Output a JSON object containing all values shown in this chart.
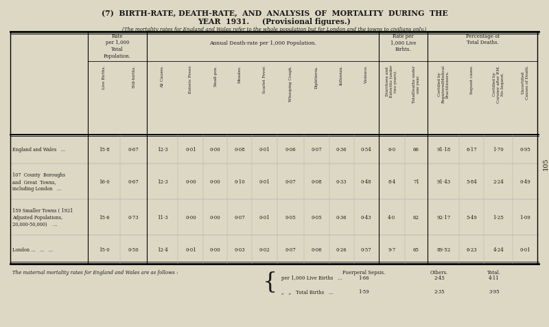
{
  "title_line1": "(7)  BIRTH-RATE, DEATH-RATE,  AND  ANALYSIS  OF  MORTALITY  DURING  THE",
  "title_line2": "YEAR  1931.     (Provisional figures.)",
  "subtitle": "(The mortality rates for England and Wales refer to the whole population but for London and the towns to civilians only.)",
  "col_headers": [
    "Live Births.",
    "Still-births.",
    "All Causes.",
    "Enteric Fever.",
    "Small-pox.",
    "Measles.",
    "Scarlet Fever.",
    "Whooping Cough.",
    "Diphtheria.",
    "Influenza.",
    "Violence.",
    "Diarrhoea and\nEnteritis (under\ntwo years).",
    "TotalDeaths under\none year.",
    "Certified by\nRegisteredMedical\nPractitioners.",
    "Inquest cases.",
    "Certified by\nCoroner after P.M.\nNo Inquest.",
    "Uncertified\nCauses of Death."
  ],
  "row_labels": [
    "England and Wales   ...",
    "107  County  Boroughs\nand  Great  Towns,\nincluding London   ...",
    "159 Smaller Towns ( 1921\nAdjusted Populations,\n20,000-50,000)    ...",
    "London ...   ...   ..."
  ],
  "data": [
    [
      "15·8",
      "0·67",
      "12·3",
      "0·01",
      "0·00",
      "0·08",
      "0·01",
      "0·06",
      "0·07",
      "0·36",
      "0·54",
      "6·0",
      "66",
      "91·18",
      "6·17",
      "1·70",
      "0·95"
    ],
    [
      "16·0",
      "0·67",
      "12·3",
      "0·00",
      "0·00",
      "0·10",
      "0·01",
      "0·07",
      "0·08",
      "0·33",
      "0·48",
      "8·4",
      "71",
      "91·43",
      "5·84",
      "2·24",
      "0·49"
    ],
    [
      "15·6",
      "0·73",
      "11·3",
      "0·00",
      "0·00",
      "0·07",
      "0·01",
      "0·05",
      "0·05",
      "0·36",
      "0·43",
      "4·0",
      "62",
      "92·17",
      "5·49",
      "1·25",
      "1·09"
    ],
    [
      "15·0",
      "0·50",
      "12·4",
      "0·01",
      "0·00",
      "0·03",
      "0·02",
      "0·07",
      "0·06",
      "0·26",
      "0·57",
      "9·7",
      "65",
      "89·52",
      "6·23",
      "4·24",
      "0·01"
    ]
  ],
  "footnote_label": "The maternal mortality rates for England and Wales are as follows :",
  "footnote_col_headers": [
    "Puerperal Sepsis.",
    "Others.",
    "Total."
  ],
  "footnote_row_labels": [
    "per 1,000 Live Births   ...",
    "„   „   Total Births   ..."
  ],
  "footnote_data": [
    [
      "1·66",
      "2·45",
      "4·11"
    ],
    [
      "1·59",
      "2·35",
      "3·95"
    ]
  ],
  "bg_color": "#ddd8c4",
  "text_color": "#1a1a1a",
  "page_num": "105"
}
